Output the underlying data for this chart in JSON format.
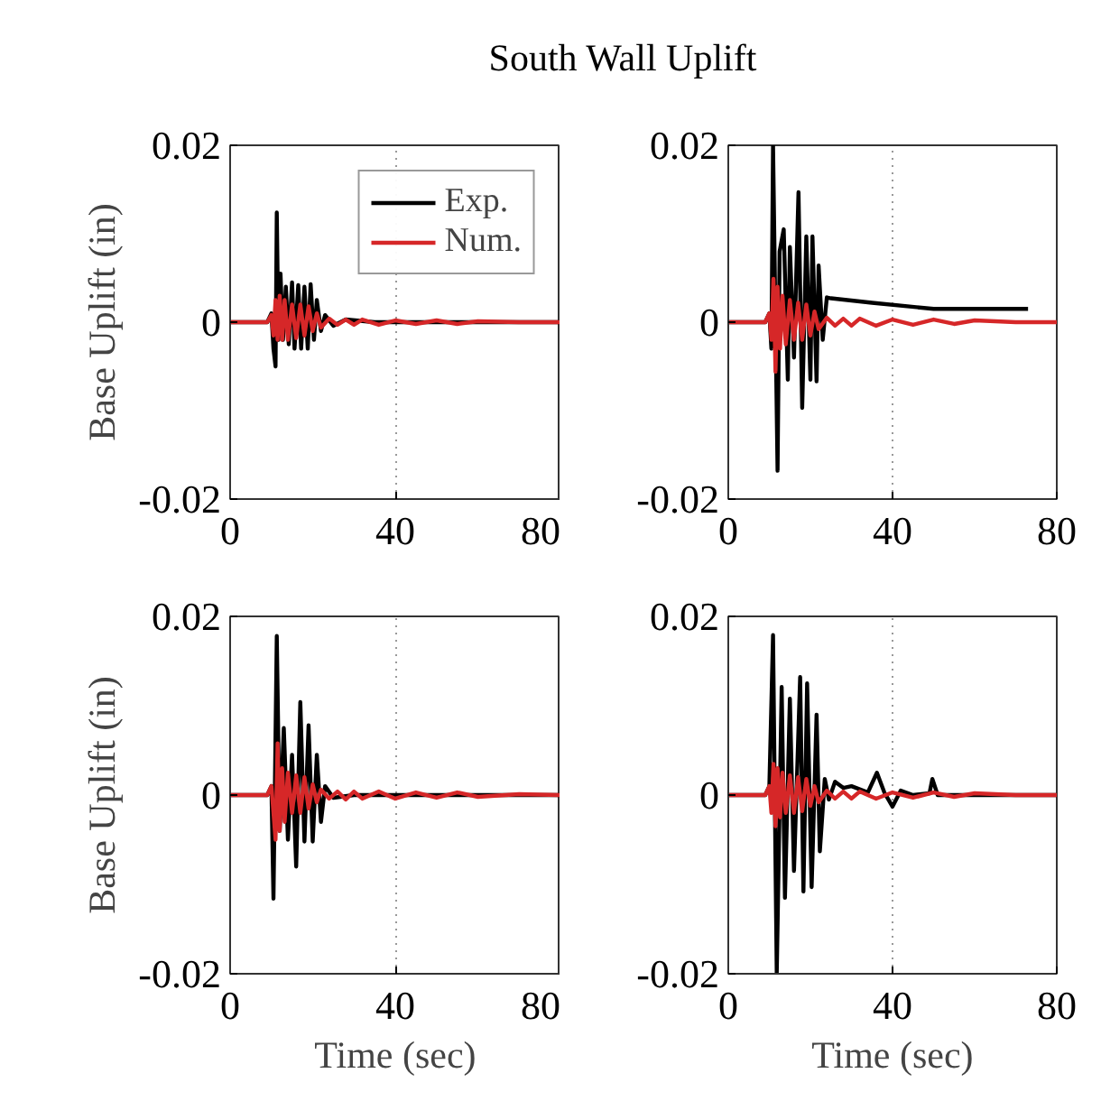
{
  "chart_data": [
    {
      "type": "line",
      "title": "South Wall Uplift",
      "ylabel": "Base Uplift (in)",
      "xlim": [
        0,
        80
      ],
      "ylim": [
        -0.02,
        0.02
      ],
      "xticks": [
        0,
        40,
        80
      ],
      "yticks": [
        -0.02,
        0,
        0.02
      ],
      "grid": "x",
      "legend": "top right",
      "series": [
        {
          "name": "Exp.",
          "color": "#000000",
          "x": [
            0,
            9,
            10,
            10.5,
            11,
            11.3,
            11.7,
            12.2,
            12.8,
            13.5,
            14.2,
            15,
            15.6,
            16.5,
            17.2,
            18,
            18.8,
            19.5,
            20.3,
            21,
            22,
            23,
            25,
            28,
            35,
            80
          ],
          "values": [
            0,
            0,
            0.001,
            -0.003,
            -0.005,
            0.0124,
            -0.002,
            0.0055,
            -0.002,
            0.004,
            -0.0025,
            0.0045,
            -0.003,
            0.0042,
            -0.003,
            0.004,
            -0.003,
            0.0043,
            -0.002,
            0.0025,
            -0.001,
            0.0008,
            -0.0004,
            0.0003,
            0,
            0
          ]
        },
        {
          "name": "Num.",
          "color": "#d62728",
          "x": [
            0,
            9,
            10,
            10.5,
            11,
            11.5,
            12,
            12.6,
            13.2,
            14,
            15,
            16,
            17,
            18,
            19,
            20,
            21,
            22,
            24,
            26,
            28,
            30,
            32,
            36,
            40,
            45,
            50,
            55,
            60,
            70,
            80
          ],
          "values": [
            0,
            0,
            0.0008,
            -0.0015,
            0.0025,
            -0.002,
            0.003,
            -0.002,
            0.0025,
            -0.002,
            0.002,
            -0.0018,
            0.002,
            -0.0015,
            0.0018,
            -0.001,
            0.001,
            -0.0006,
            0.0004,
            -0.0003,
            0.0003,
            -0.0003,
            0.0003,
            -0.0003,
            0.0002,
            -0.0002,
            0.0002,
            -0.0002,
            0.0001,
            0,
            0
          ]
        }
      ]
    },
    {
      "type": "line",
      "xlim": [
        0,
        80
      ],
      "ylim": [
        -0.02,
        0.02
      ],
      "xticks": [
        0,
        40,
        80
      ],
      "yticks": [
        -0.02,
        0,
        0.02
      ],
      "grid": "x",
      "series": [
        {
          "color": "#000000",
          "x": [
            0,
            9,
            10,
            10.5,
            10.9,
            12,
            12.5,
            13.5,
            14.5,
            15,
            16,
            17.1,
            18,
            19,
            20,
            20.5,
            21.5,
            22,
            23,
            24,
            25,
            35,
            50,
            73
          ],
          "values": [
            0,
            0,
            0.001,
            -0.003,
            0.02,
            -0.0168,
            0.008,
            0.0105,
            -0.0065,
            0.0085,
            -0.004,
            0.0147,
            -0.0097,
            0.0097,
            -0.0065,
            0.0097,
            -0.0067,
            0.0064,
            -0.002,
            0.0028,
            0.0027,
            0.0022,
            0.0015,
            0.0015
          ]
        },
        {
          "color": "#d62728",
          "x": [
            0,
            9,
            10,
            10.5,
            11,
            11.5,
            12,
            12.6,
            13.2,
            14,
            15,
            16,
            17,
            18,
            19,
            20,
            21,
            22,
            24,
            26,
            28,
            30,
            32,
            36,
            40,
            45,
            50,
            55,
            60,
            70,
            80
          ],
          "values": [
            0,
            0,
            0.001,
            -0.002,
            0.0049,
            -0.0056,
            0.004,
            -0.003,
            0.003,
            -0.0025,
            0.0025,
            -0.002,
            0.0022,
            -0.002,
            0.002,
            -0.0015,
            0.0012,
            -0.0008,
            0.0005,
            -0.0004,
            0.0004,
            -0.0004,
            0.0004,
            -0.0004,
            0.0003,
            -0.0003,
            0.0003,
            -0.0002,
            0.0002,
            0,
            0
          ]
        }
      ]
    },
    {
      "type": "line",
      "ylabel": "Base Uplift (in)",
      "xlabel": "Time (sec)",
      "xlim": [
        0,
        80
      ],
      "ylim": [
        -0.02,
        0.02
      ],
      "xticks": [
        0,
        40,
        80
      ],
      "yticks": [
        -0.02,
        0,
        0.02
      ],
      "grid": "x",
      "series": [
        {
          "color": "#000000",
          "x": [
            0,
            9,
            10,
            10.5,
            11.3,
            12,
            13,
            14,
            15,
            16,
            17,
            18,
            19,
            20,
            21,
            22,
            23,
            25,
            30,
            80
          ],
          "values": [
            0,
            0,
            0.001,
            -0.0116,
            0.0178,
            -0.004,
            0.0075,
            -0.005,
            0.0045,
            -0.008,
            0.0104,
            -0.0052,
            0.0078,
            -0.0052,
            0.0045,
            -0.003,
            0.001,
            -0.0003,
            0,
            0
          ]
        },
        {
          "color": "#d62728",
          "x": [
            0,
            9,
            10,
            11,
            11.5,
            12,
            12.6,
            13.2,
            14,
            15,
            16,
            17,
            18,
            19,
            20,
            21,
            22,
            24,
            26,
            28,
            30,
            32,
            36,
            40,
            45,
            50,
            55,
            60,
            70,
            80
          ],
          "values": [
            0,
            0,
            0.001,
            -0.005,
            0.0058,
            -0.004,
            0.003,
            -0.003,
            0.0025,
            -0.002,
            0.0022,
            -0.002,
            0.002,
            -0.0015,
            0.0012,
            -0.0008,
            0.0006,
            -0.0004,
            0.0004,
            -0.0005,
            0.0004,
            -0.0004,
            0.0004,
            -0.0004,
            0.0003,
            -0.0003,
            0.0003,
            -0.0002,
            0.0001,
            0
          ]
        }
      ]
    },
    {
      "type": "line",
      "xlabel": "Time (sec)",
      "xlim": [
        0,
        80
      ],
      "ylim": [
        -0.02,
        0.02
      ],
      "xticks": [
        0,
        40,
        80
      ],
      "yticks": [
        -0.02,
        0,
        0.02
      ],
      "grid": "x",
      "series": [
        {
          "color": "#000000",
          "x": [
            0,
            9,
            10,
            10.9,
            11.8,
            13,
            13.8,
            15,
            16,
            17.5,
            18.3,
            19.2,
            20.3,
            21.5,
            22.3,
            23.5,
            24.5,
            26,
            28,
            30,
            34,
            36.2,
            38,
            40,
            42,
            45,
            49,
            49.7,
            51,
            80
          ],
          "values": [
            0,
            0,
            0.001,
            0.0179,
            -0.02,
            0.0121,
            -0.0115,
            0.0108,
            -0.0085,
            0.0132,
            -0.0108,
            0.0125,
            -0.0103,
            0.009,
            -0.0063,
            0.0018,
            -0.0005,
            0.0015,
            0.0008,
            0.001,
            0.0003,
            0.0025,
            0.0003,
            -0.0013,
            0.0005,
            0,
            0.0002,
            0.0018,
            0,
            0
          ]
        },
        {
          "color": "#d62728",
          "x": [
            0,
            9,
            10,
            10.5,
            11,
            11.5,
            12,
            12.6,
            13.2,
            14,
            15,
            16,
            17,
            18,
            19,
            20,
            21,
            22,
            24,
            26,
            28,
            30,
            32,
            36,
            40,
            45,
            50,
            55,
            60,
            70,
            80
          ],
          "values": [
            0,
            0,
            0.001,
            -0.002,
            0.0035,
            -0.0035,
            0.003,
            -0.0025,
            0.0025,
            -0.002,
            0.0022,
            -0.002,
            0.002,
            -0.0018,
            0.0018,
            -0.0012,
            0.001,
            -0.0008,
            0.0005,
            -0.0004,
            0.0004,
            -0.0004,
            0.0004,
            -0.0004,
            0.0003,
            -0.0003,
            0.0003,
            -0.0002,
            0.0002,
            0,
            0
          ]
        }
      ]
    }
  ]
}
